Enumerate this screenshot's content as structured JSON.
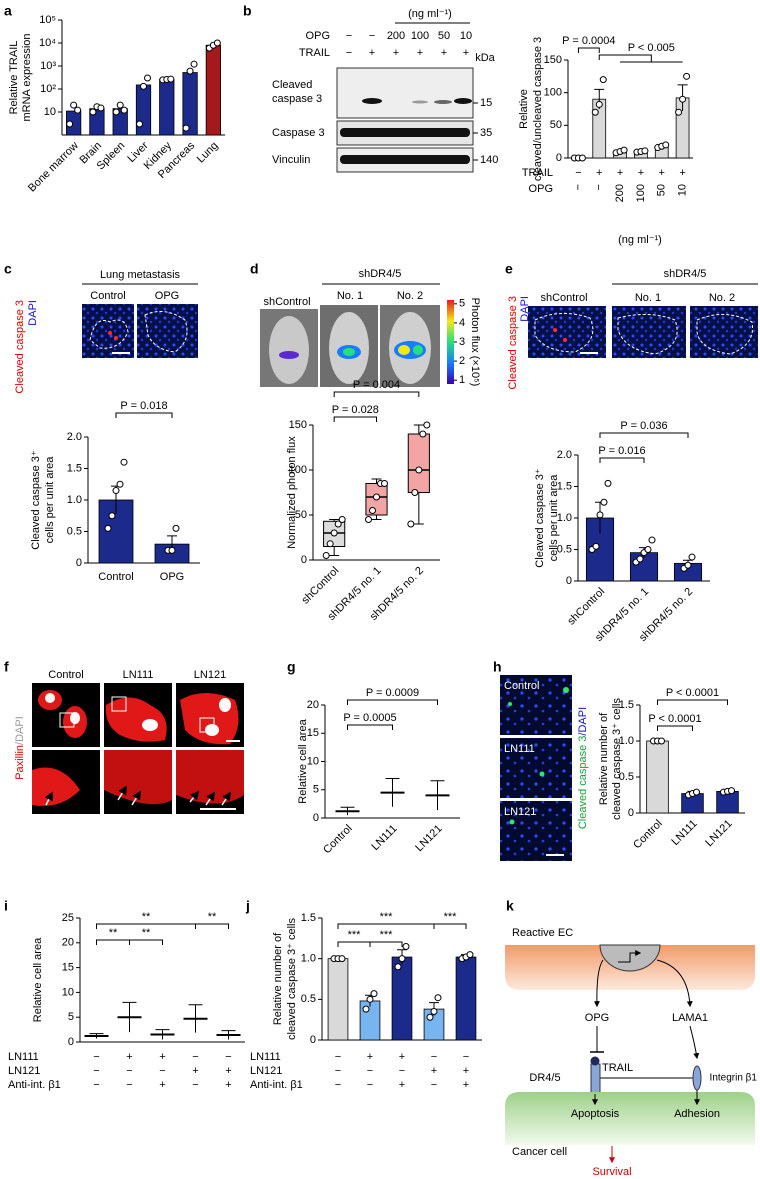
{
  "panel_labels": [
    "a",
    "b",
    "c",
    "d",
    "e",
    "f",
    "g",
    "h",
    "i",
    "j",
    "k"
  ],
  "chart_data": [
    {
      "type": "bar",
      "yscale": "log",
      "ylabel": [
        "Relative TRAIL",
        "mRNA expression"
      ],
      "categories": [
        "Bone marrow",
        "Brain",
        "Spleen",
        "Liver",
        "Kidney",
        "Pancreas",
        "Lung"
      ],
      "values": [
        11,
        14,
        14,
        150,
        260,
        520,
        8000
      ],
      "points": [
        [
          3,
          20,
          12
        ],
        [
          10,
          17,
          15
        ],
        [
          10,
          20,
          12
        ],
        [
          3,
          130,
          300
        ],
        [
          250,
          260,
          270
        ],
        [
          2,
          600,
          1200
        ],
        [
          6000,
          8000,
          10000
        ]
      ],
      "colors": [
        "#1c2a8c",
        "#1c2a8c",
        "#1c2a8c",
        "#1c2a8c",
        "#1c2a8c",
        "#1c2a8c",
        "#a3191c"
      ],
      "ylim": [
        1,
        100000
      ],
      "yticks": [
        10,
        {
          "value": 100,
          "label": "10²"
        },
        {
          "value": 1000,
          "label": "10³"
        },
        {
          "value": 10000,
          "label": "10⁴"
        },
        {
          "value": 100000,
          "label": "10⁵"
        }
      ]
    },
    {
      "type": "bar",
      "ylabel": [
        "Relative",
        "cleaved/uncleaved caspase 3"
      ],
      "conditions": [
        {
          "name": "TRAIL",
          "values": [
            "−",
            "+",
            "+",
            "+",
            "+",
            "+"
          ]
        },
        {
          "name": "OPG",
          "values": [
            "−",
            "−",
            "200",
            "100",
            "50",
            "10"
          ]
        }
      ],
      "conditions_unit": "(ng ml⁻¹)",
      "values": [
        0,
        90,
        10,
        10,
        18,
        92
      ],
      "errors": [
        0,
        15,
        2,
        1,
        2,
        20
      ],
      "points": [
        [
          0,
          0,
          0
        ],
        [
          70,
          82,
          120
        ],
        [
          8,
          10,
          12
        ],
        [
          9,
          10,
          11
        ],
        [
          16,
          18,
          20
        ],
        [
          70,
          90,
          125
        ]
      ],
      "colors": [
        "#d9d9d9",
        "#d9d9d9",
        "#d9d9d9",
        "#d9d9d9",
        "#d9d9d9",
        "#d9d9d9"
      ],
      "ylim": [
        0,
        150
      ],
      "yticks": [
        0,
        50,
        100,
        150
      ],
      "significance": [
        "P = 0.0004",
        "P < 0.005"
      ]
    },
    {
      "type": "bar",
      "ylabel": [
        "Cleaved caspase 3⁺",
        "cells per unit area"
      ],
      "categories": [
        "Control",
        "OPG"
      ],
      "values": [
        1,
        0.3
      ],
      "errors": [
        0.22,
        0.13
      ],
      "points": [
        [
          0.55,
          0.75,
          1.15,
          1.25,
          1.6
        ],
        [
          0.2,
          0.2,
          0.55
        ]
      ],
      "colors": [
        "#1c2a8c",
        "#1c2a8c"
      ],
      "ylim": [
        0,
        2
      ],
      "yticks": [
        0,
        0.5,
        {
          "value": 1,
          "label": "1.0"
        },
        1.5,
        {
          "value": 2,
          "label": "2.0"
        }
      ],
      "significance": [
        "P = 0.018"
      ]
    },
    {
      "type": "box",
      "ylabel": [
        "Normalized photon flux"
      ],
      "categories": [
        "shControl",
        "shDR4/5 no. 1",
        "shDR4/5 no. 2"
      ],
      "values": [
        30,
        70,
        100
      ],
      "q1": [
        15,
        50,
        75
      ],
      "q3": [
        43,
        85,
        140
      ],
      "min": [
        5,
        45,
        40
      ],
      "max": [
        45,
        90,
        150
      ],
      "points": [
        [
          5,
          18,
          30,
          40,
          45
        ],
        [
          45,
          55,
          70,
          85,
          85
        ],
        [
          40,
          75,
          100,
          140,
          150
        ]
      ],
      "colors": [
        "#dcdcdc",
        "#f3a5a5",
        "#f3a5a5"
      ],
      "ylim": [
        0,
        150
      ],
      "yticks": [
        0,
        50,
        100,
        150
      ],
      "significance": [
        "P = 0.004",
        "P = 0.028"
      ]
    },
    {
      "type": "bar",
      "ylabel": [
        "Cleaved caspase 3⁺",
        "cells per unit area"
      ],
      "categories": [
        "shControl",
        "shDR4/5 no. 1",
        "shDR4/5 no. 2"
      ],
      "values": [
        1,
        0.45,
        0.28
      ],
      "errors": [
        0.25,
        0.08,
        0.05
      ],
      "points": [
        [
          0.5,
          0.55,
          1.05,
          1.25,
          1.55
        ],
        [
          0.3,
          0.35,
          0.45,
          0.5,
          0.65
        ],
        [
          0.2,
          0.25,
          0.38
        ]
      ],
      "colors": [
        "#1c2a8c",
        "#1c2a8c",
        "#1c2a8c"
      ],
      "ylim": [
        0,
        2
      ],
      "yticks": [
        0,
        0.5,
        {
          "value": 1,
          "label": "1.0"
        },
        1.5,
        {
          "value": 2,
          "label": "2.0"
        }
      ],
      "significance": [
        "P = 0.036",
        "P = 0.016"
      ]
    },
    {
      "type": "strip",
      "ylabel": [
        "Relative cell area"
      ],
      "categories": [
        "Control",
        "LN111",
        "LN121"
      ],
      "values": [
        1.2,
        4.5,
        4
      ],
      "errors": [
        0.7,
        2.5,
        2.6
      ],
      "ylim": [
        0,
        20
      ],
      "yticks": [
        0,
        5,
        10,
        15,
        20
      ],
      "significance": [
        "P = 0.0009",
        "P = 0.0005"
      ]
    },
    {
      "type": "bar",
      "ylabel": [
        "Relative number of",
        "cleaved caspase 3⁺ cells"
      ],
      "categories": [
        "Control",
        "LN111",
        "LN121"
      ],
      "values": [
        1,
        0.27,
        0.3
      ],
      "errors": [
        0,
        0.03,
        0.02
      ],
      "points": [
        [
          1,
          1,
          1
        ],
        [
          0.25,
          0.27,
          0.29
        ],
        [
          0.29,
          0.3,
          0.31
        ]
      ],
      "colors": [
        "#d9d9d9",
        "#1c2a8c",
        "#1c2a8c"
      ],
      "ylim": [
        0,
        1.5
      ],
      "yticks": [
        0,
        0.5,
        {
          "value": 1,
          "label": "1.0"
        },
        1.5
      ],
      "significance": [
        "P < 0.0001",
        "P < 0.0001"
      ]
    },
    {
      "type": "strip",
      "ylabel": [
        "Relative cell area"
      ],
      "conditions": [
        {
          "name": "LN111",
          "values": [
            "−",
            "+",
            "+",
            "−",
            "−"
          ]
        },
        {
          "name": "LN121",
          "values": [
            "−",
            "−",
            "−",
            "+",
            "+"
          ]
        },
        {
          "name": "Anti-int. β1",
          "values": [
            "−",
            "−",
            "+",
            "−",
            "+"
          ]
        }
      ],
      "values": [
        1.2,
        5,
        1.5,
        4.7,
        1.4
      ],
      "errors": [
        0.5,
        3,
        1,
        2.8,
        0.9
      ],
      "ylim": [
        0,
        25
      ],
      "yticks": [
        0,
        5,
        10,
        15,
        20,
        25
      ],
      "significance": [
        "**",
        "**",
        "**",
        "**"
      ]
    },
    {
      "type": "bar",
      "ylabel": [
        "Relative number of",
        "cleaved caspase 3⁺ cells"
      ],
      "conditions": [
        {
          "name": "LN111",
          "values": [
            "−",
            "+",
            "+",
            "−",
            "−"
          ]
        },
        {
          "name": "LN121",
          "values": [
            "−",
            "−",
            "−",
            "+",
            "+"
          ]
        },
        {
          "name": "Anti-int. β1",
          "values": [
            "−",
            "−",
            "+",
            "−",
            "+"
          ]
        }
      ],
      "values": [
        1,
        0.48,
        1.02,
        0.38,
        1.02
      ],
      "errors": [
        0,
        0.07,
        0.09,
        0.08,
        0.03
      ],
      "points": [
        [
          1,
          1,
          1
        ],
        [
          0.38,
          0.5,
          0.57
        ],
        [
          0.9,
          1,
          1.15
        ],
        [
          0.28,
          0.35,
          0.52
        ],
        [
          1,
          1.02,
          1.05
        ]
      ],
      "colors": [
        "#d9d9d9",
        "#78b4f0",
        "#1c2a8c",
        "#78b4f0",
        "#1c2a8c"
      ],
      "ylim": [
        0,
        1.5
      ],
      "yticks": [
        0,
        0.5,
        {
          "value": 1,
          "label": "1.0"
        },
        1.5
      ],
      "significance": [
        "***",
        "***",
        "***",
        "***",
        "***"
      ]
    }
  ],
  "panels": {
    "b_blot": {
      "unit": "(ng ml⁻¹)",
      "rows": [
        {
          "name": "OPG",
          "values": [
            "−",
            "−",
            "200",
            "100",
            "50",
            "10"
          ]
        },
        {
          "name": "TRAIL",
          "values": [
            "−",
            "+",
            "+",
            "+",
            "+",
            "+"
          ]
        }
      ],
      "kda_label": "kDa",
      "bands": [
        {
          "label": [
            "Cleaved",
            "caspase 3"
          ],
          "kda": 15
        },
        {
          "label": [
            "Caspase 3"
          ],
          "kda": 35
        },
        {
          "label": [
            "Vinculin"
          ],
          "kda": 140
        }
      ]
    },
    "c_images": {
      "title": "Lung metastasis",
      "columns": [
        "Control",
        "OPG"
      ],
      "stain": [
        "Cleaved caspase 3",
        "DAPI"
      ]
    },
    "d_images": {
      "columns": [
        "shControl",
        "No. 1",
        "No. 2"
      ],
      "group": "shDR4/5",
      "colorbar_label": "Photon flux (×10⁵)",
      "colorbar_ticks": [
        1,
        2,
        3,
        4,
        5
      ],
      "colorbar_lim": [
        0.8,
        5.2
      ]
    },
    "e_images": {
      "columns": [
        "shControl",
        "No. 1",
        "No. 2"
      ],
      "group": "shDR4/5",
      "stain": [
        "Cleaved caspase 3",
        "DAPI"
      ]
    },
    "f_images": {
      "columns": [
        "Control",
        "LN111",
        "LN121"
      ],
      "stain": [
        "Paxillin",
        "/DAPI"
      ]
    },
    "h_images": {
      "rows": [
        "Control",
        "LN111",
        "LN121"
      ],
      "stain": [
        "Cleaved caspase 3",
        "/DAPI"
      ]
    },
    "k_diagram": {
      "top_cell": "Reactive EC",
      "ligands": [
        "OPG",
        "LAMA1"
      ],
      "receptors": [
        "DR4/5",
        "TRAIL",
        "Integrin β1"
      ],
      "outcomes": [
        "Apoptosis",
        "Adhesion"
      ],
      "bottom_cell": "Cancer cell",
      "result": "Survival"
    }
  }
}
